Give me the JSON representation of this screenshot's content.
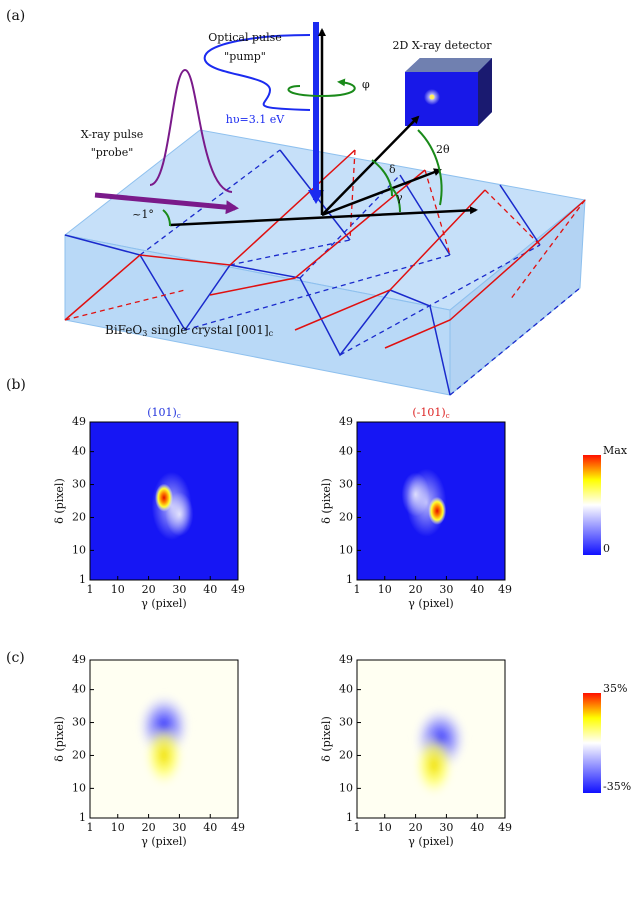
{
  "panel_labels": [
    "(a)",
    "(b)",
    "(c)"
  ],
  "diagram": {
    "optical_line1": "Optical pulse",
    "optical_line2": "\"pump\"",
    "photon_energy": "hυ=3.1 eV",
    "phi": "φ",
    "detector": "2D X-ray detector",
    "xray_line1": "X-ray pulse",
    "xray_line2": "\"probe\"",
    "incidence": "~1°",
    "delta": "δ",
    "two_theta": "2θ",
    "gamma": "γ",
    "crystal": [
      "BiFeO",
      "3",
      " single crystal [001]",
      "c"
    ]
  },
  "maps_b_titles": [
    {
      "text": "(101)",
      "sub": "c",
      "color": "#2233dd"
    },
    {
      "text": "(-101)",
      "sub": "c",
      "color": "#dd2222"
    }
  ],
  "axes": {
    "xlabel": "γ (pixel)",
    "ylabel": "δ (pixel)",
    "lim": [
      1,
      49
    ],
    "ticks": [
      1,
      10,
      20,
      30,
      40,
      49
    ]
  },
  "colorbars": [
    {
      "top": "Max",
      "bottom": "0"
    },
    {
      "top": "35%",
      "bottom": "-35%"
    }
  ]
}
